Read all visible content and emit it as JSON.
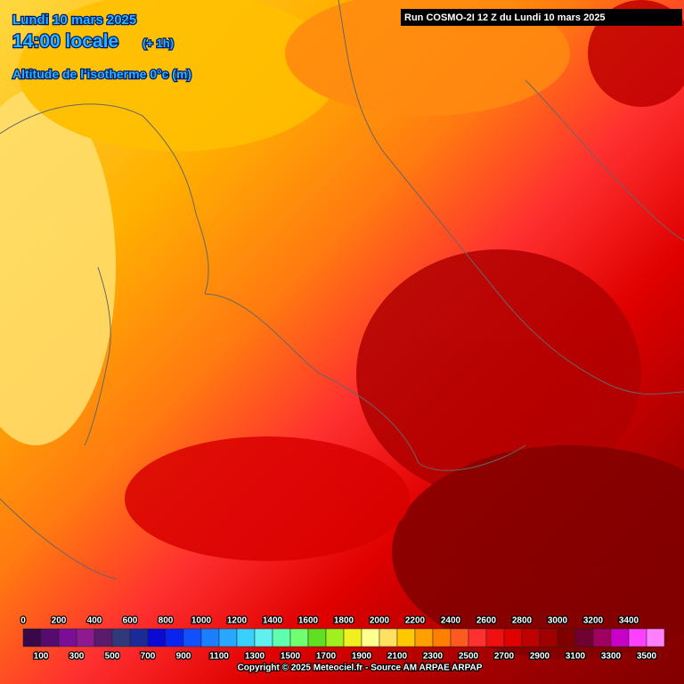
{
  "header": {
    "date": "Lundi 10 mars 2025",
    "time": "14:00 locale",
    "offset": "(+ 1h)",
    "field": "Altitude de l'isotherme 0°c (m)"
  },
  "run": "Run COSMO-2I 12 Z du Lundi 10 mars 2025",
  "legend": {
    "levels": [
      {
        "value": 0,
        "color": "#380848"
      },
      {
        "value": 100,
        "color": "#560c6e"
      },
      {
        "value": 200,
        "color": "#7a0e96"
      },
      {
        "value": 300,
        "color": "#8e1a90"
      },
      {
        "value": 400,
        "color": "#5c1a6c"
      },
      {
        "value": 500,
        "color": "#303a7a"
      },
      {
        "value": 600,
        "color": "#1c2a98"
      },
      {
        "value": 700,
        "color": "#0a0ad2"
      },
      {
        "value": 800,
        "color": "#0a24f0"
      },
      {
        "value": 900,
        "color": "#1050ff"
      },
      {
        "value": 1000,
        "color": "#1a80ff"
      },
      {
        "value": 1100,
        "color": "#28a8ff"
      },
      {
        "value": 1200,
        "color": "#38d0ff"
      },
      {
        "value": 1300,
        "color": "#60f0f0"
      },
      {
        "value": 1400,
        "color": "#60ffb0"
      },
      {
        "value": 1500,
        "color": "#70ff70"
      },
      {
        "value": 1600,
        "color": "#60e020"
      },
      {
        "value": 1700,
        "color": "#a0f020"
      },
      {
        "value": 1800,
        "color": "#f0f020"
      },
      {
        "value": 1900,
        "color": "#ffff90"
      },
      {
        "value": 2000,
        "color": "#ffe060"
      },
      {
        "value": 2100,
        "color": "#ffc800"
      },
      {
        "value": 2200,
        "color": "#ffa000"
      },
      {
        "value": 2300,
        "color": "#ff8000"
      },
      {
        "value": 2400,
        "color": "#ff5a20"
      },
      {
        "value": 2500,
        "color": "#ff3030"
      },
      {
        "value": 2600,
        "color": "#f01010"
      },
      {
        "value": 2700,
        "color": "#e00000"
      },
      {
        "value": 2800,
        "color": "#c00000"
      },
      {
        "value": 2900,
        "color": "#a00000"
      },
      {
        "value": 3000,
        "color": "#800000"
      },
      {
        "value": 3100,
        "color": "#700030"
      },
      {
        "value": 3200,
        "color": "#a00060"
      },
      {
        "value": 3300,
        "color": "#c800c8"
      },
      {
        "value": 3400,
        "color": "#ff40ff"
      },
      {
        "value": 3500,
        "color": "#ff80ff"
      }
    ]
  },
  "footer": "Copyright © 2025 Meteociel.fr - Source AM ARPAE ARPAP"
}
